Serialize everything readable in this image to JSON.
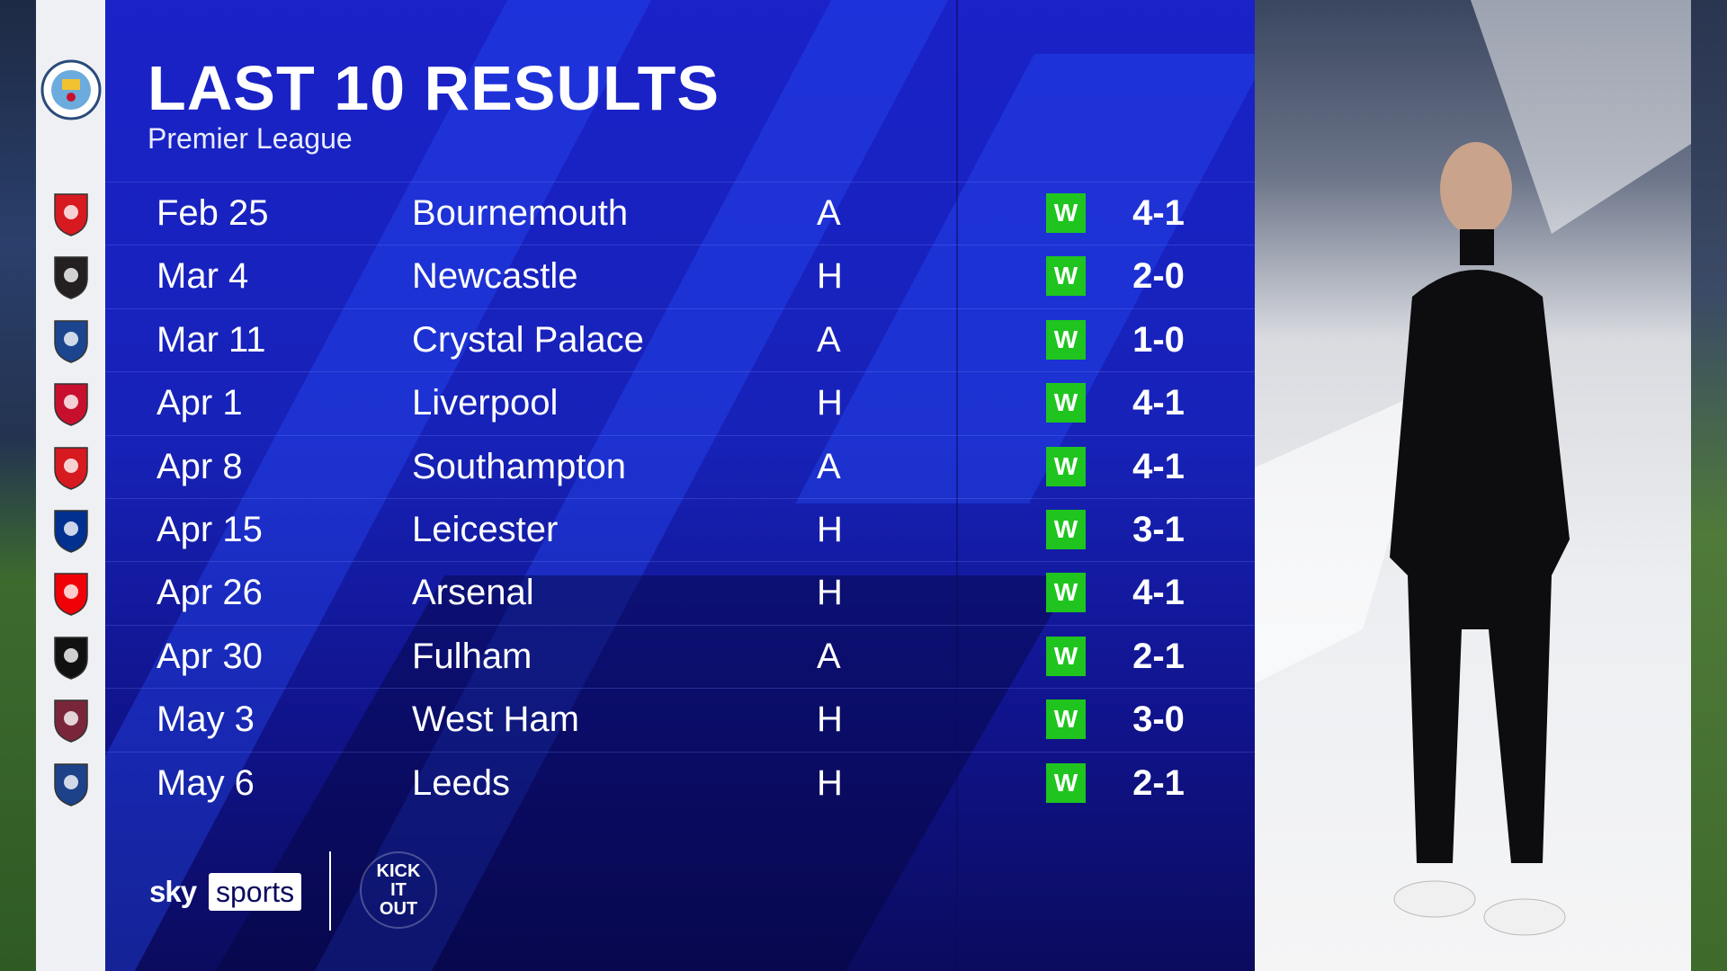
{
  "header": {
    "title": "LAST 10 RESULTS",
    "subtitle": "Premier League"
  },
  "team": {
    "badge_icon": "man-city-crest"
  },
  "result_color": "#1fc41f",
  "results": [
    {
      "date": "Feb 25",
      "opponent": "Bournemouth",
      "venue": "A",
      "result": "W",
      "score": "4-1",
      "badge_color": "#d71920"
    },
    {
      "date": "Mar 4",
      "opponent": "Newcastle",
      "venue": "H",
      "result": "W",
      "score": "2-0",
      "badge_color": "#241f20"
    },
    {
      "date": "Mar 11",
      "opponent": "Crystal Palace",
      "venue": "A",
      "result": "W",
      "score": "1-0",
      "badge_color": "#1b458f"
    },
    {
      "date": "Apr 1",
      "opponent": "Liverpool",
      "venue": "H",
      "result": "W",
      "score": "4-1",
      "badge_color": "#c8102e"
    },
    {
      "date": "Apr 8",
      "opponent": "Southampton",
      "venue": "A",
      "result": "W",
      "score": "4-1",
      "badge_color": "#d71920"
    },
    {
      "date": "Apr 15",
      "opponent": "Leicester",
      "venue": "H",
      "result": "W",
      "score": "3-1",
      "badge_color": "#003090"
    },
    {
      "date": "Apr 26",
      "opponent": "Arsenal",
      "venue": "H",
      "result": "W",
      "score": "4-1",
      "badge_color": "#ef0107"
    },
    {
      "date": "Apr 30",
      "opponent": "Fulham",
      "venue": "A",
      "result": "W",
      "score": "2-1",
      "badge_color": "#111111"
    },
    {
      "date": "May 3",
      "opponent": "West Ham",
      "venue": "H",
      "result": "W",
      "score": "3-0",
      "badge_color": "#7a263a"
    },
    {
      "date": "May 6",
      "opponent": "Leeds",
      "venue": "H",
      "result": "W",
      "score": "2-1",
      "badge_color": "#1d428a"
    }
  ],
  "footer": {
    "sky": "sky",
    "sports": "sports",
    "kick_it_out": "KICK IT OUT"
  }
}
